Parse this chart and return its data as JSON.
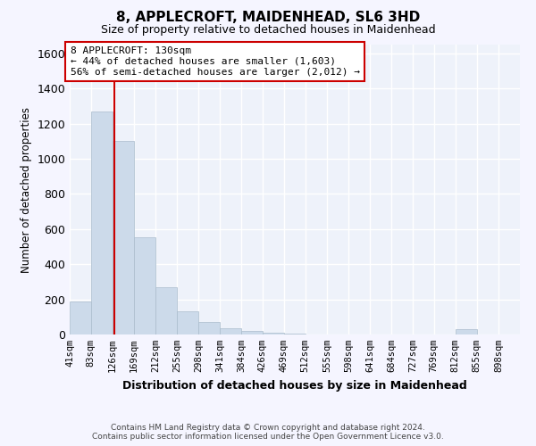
{
  "title": "8, APPLECROFT, MAIDENHEAD, SL6 3HD",
  "subtitle": "Size of property relative to detached houses in Maidenhead",
  "xlabel": "Distribution of detached houses by size in Maidenhead",
  "ylabel": "Number of detached properties",
  "footer_line1": "Contains HM Land Registry data © Crown copyright and database right 2024.",
  "footer_line2": "Contains public sector information licensed under the Open Government Licence v3.0.",
  "annotation_title": "8 APPLECROFT: 130sqm",
  "annotation_line2": "← 44% of detached houses are smaller (1,603)",
  "annotation_line3": "56% of semi-detached houses are larger (2,012) →",
  "property_size_sqm": 130,
  "bar_color": "#ccdaea",
  "bar_edge_color": "#aabccc",
  "vline_color": "#cc0000",
  "annotation_box_edgecolor": "#cc0000",
  "background_color": "#eef2fa",
  "grid_color": "#ffffff",
  "fig_background": "#f5f5ff",
  "categories": [
    "41sqm",
    "83sqm",
    "126sqm",
    "169sqm",
    "212sqm",
    "255sqm",
    "298sqm",
    "341sqm",
    "384sqm",
    "426sqm",
    "469sqm",
    "512sqm",
    "555sqm",
    "598sqm",
    "641sqm",
    "684sqm",
    "727sqm",
    "769sqm",
    "812sqm",
    "855sqm",
    "898sqm"
  ],
  "bin_edges": [
    41,
    83,
    126,
    169,
    212,
    255,
    298,
    341,
    384,
    426,
    469,
    512,
    555,
    598,
    641,
    684,
    727,
    769,
    812,
    855,
    898,
    941
  ],
  "values": [
    190,
    1270,
    1100,
    555,
    270,
    130,
    70,
    35,
    20,
    10,
    5,
    0,
    0,
    0,
    0,
    0,
    0,
    0,
    30,
    0,
    0
  ],
  "ylim": [
    0,
    1650
  ],
  "yticks": [
    0,
    200,
    400,
    600,
    800,
    1000,
    1200,
    1400,
    1600
  ]
}
